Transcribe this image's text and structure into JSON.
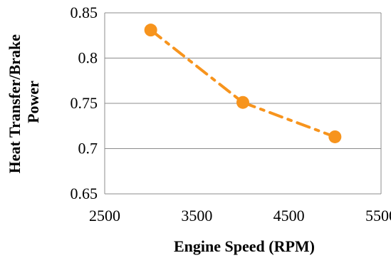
{
  "chart_data": {
    "type": "scatter",
    "xlabel": "Engine Speed (RPM)",
    "ylabel_lines": [
      "Heat Transfer/Brake",
      "Power"
    ],
    "xlim": [
      2500,
      5500
    ],
    "ylim": [
      0.65,
      0.85
    ],
    "x_ticks": [
      2500,
      3500,
      4500,
      5500
    ],
    "y_ticks": [
      "0.65",
      "0.7",
      "0.75",
      "0.8",
      "0.85"
    ],
    "grid": "horizontal",
    "series": [
      {
        "color": "#F7941D",
        "line_style": "dash-dot",
        "marker": "circle",
        "points": [
          {
            "x": 3000,
            "y": 0.831
          },
          {
            "x": 4000,
            "y": 0.751
          },
          {
            "x": 5000,
            "y": 0.713
          }
        ]
      }
    ],
    "colors": {
      "gridline": "#8c8c8c",
      "axis": "#8c8c8c"
    }
  }
}
